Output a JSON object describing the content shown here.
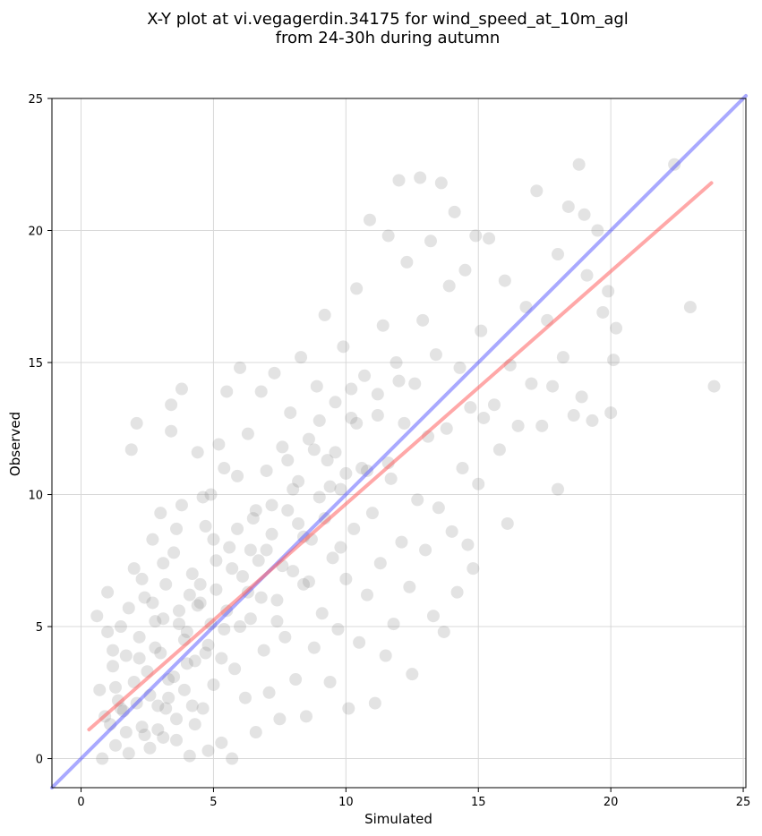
{
  "chart_data": {
    "type": "scatter",
    "title_line1": "X-Y plot at vi.vegagerdin.34175 for wind_speed_at_10m_agl",
    "title_line2": "from 24-30h during autumn",
    "xlabel": "Simulated",
    "ylabel": "Observed",
    "xlim": [
      -1.1,
      25.1
    ],
    "ylim": [
      -1.1,
      25
    ],
    "xticks": [
      0,
      5,
      10,
      15,
      20,
      25
    ],
    "yticks": [
      0,
      5,
      10,
      15,
      20,
      25
    ],
    "xtick_labels": [
      "0",
      "5",
      "10",
      "15",
      "20",
      "25"
    ],
    "ytick_labels": [
      "0",
      "5",
      "10",
      "15",
      "20",
      "25"
    ],
    "grid": true,
    "point_color": "#808080",
    "identity_line": {
      "x": [
        -1.1,
        25.1
      ],
      "y": [
        -1.1,
        25.1
      ],
      "color": "#4040ff"
    },
    "regression_line": {
      "x": [
        0.3,
        23.8
      ],
      "y": [
        1.1,
        21.8
      ],
      "color": "#ff6060"
    },
    "points": [
      [
        0.6,
        5.4
      ],
      [
        0.7,
        2.6
      ],
      [
        0.8,
        0.0
      ],
      [
        1.0,
        6.3
      ],
      [
        1.0,
        4.8
      ],
      [
        1.1,
        1.3
      ],
      [
        1.2,
        3.5
      ],
      [
        1.3,
        0.5
      ],
      [
        1.4,
        2.2
      ],
      [
        1.5,
        5.0
      ],
      [
        1.6,
        1.8
      ],
      [
        1.7,
        3.9
      ],
      [
        1.8,
        0.2
      ],
      [
        1.9,
        11.7
      ],
      [
        2.0,
        7.2
      ],
      [
        2.0,
        2.9
      ],
      [
        2.1,
        12.7
      ],
      [
        2.2,
        4.6
      ],
      [
        2.3,
        1.2
      ],
      [
        2.4,
        6.1
      ],
      [
        2.5,
        3.3
      ],
      [
        2.6,
        0.4
      ],
      [
        2.7,
        8.3
      ],
      [
        2.8,
        5.2
      ],
      [
        2.9,
        2.0
      ],
      [
        3.0,
        9.3
      ],
      [
        3.0,
        4.0
      ],
      [
        3.1,
        0.8
      ],
      [
        3.2,
        6.6
      ],
      [
        3.3,
        3.0
      ],
      [
        3.4,
        13.4
      ],
      [
        3.4,
        12.4
      ],
      [
        3.5,
        7.8
      ],
      [
        3.6,
        1.5
      ],
      [
        3.7,
        5.6
      ],
      [
        3.8,
        14.0
      ],
      [
        3.8,
        9.6
      ],
      [
        3.9,
        2.6
      ],
      [
        4.0,
        4.8
      ],
      [
        4.1,
        0.1
      ],
      [
        4.2,
        7.0
      ],
      [
        4.3,
        3.7
      ],
      [
        4.4,
        11.6
      ],
      [
        4.5,
        5.9
      ],
      [
        4.6,
        1.9
      ],
      [
        4.7,
        8.8
      ],
      [
        4.8,
        4.3
      ],
      [
        4.9,
        10.0
      ],
      [
        5.0,
        2.8
      ],
      [
        5.1,
        6.4
      ],
      [
        5.2,
        11.9
      ],
      [
        5.3,
        0.6
      ],
      [
        5.4,
        4.9
      ],
      [
        5.5,
        13.9
      ],
      [
        5.6,
        8.0
      ],
      [
        5.7,
        0.0
      ],
      [
        5.8,
        3.4
      ],
      [
        5.9,
        10.7
      ],
      [
        6.0,
        14.8
      ],
      [
        6.1,
        6.9
      ],
      [
        6.2,
        2.3
      ],
      [
        6.3,
        12.3
      ],
      [
        6.4,
        5.3
      ],
      [
        6.5,
        9.1
      ],
      [
        6.6,
        1.0
      ],
      [
        6.7,
        7.5
      ],
      [
        6.8,
        13.9
      ],
      [
        6.9,
        4.1
      ],
      [
        7.0,
        10.9
      ],
      [
        7.1,
        2.5
      ],
      [
        7.2,
        8.5
      ],
      [
        7.3,
        14.6
      ],
      [
        7.4,
        6.0
      ],
      [
        7.5,
        1.5
      ],
      [
        7.6,
        11.8
      ],
      [
        7.7,
        4.6
      ],
      [
        7.8,
        9.4
      ],
      [
        7.9,
        13.1
      ],
      [
        8.0,
        7.1
      ],
      [
        8.1,
        3.0
      ],
      [
        8.2,
        10.5
      ],
      [
        8.3,
        15.2
      ],
      [
        8.4,
        6.6
      ],
      [
        8.5,
        1.6
      ],
      [
        8.6,
        12.1
      ],
      [
        8.7,
        8.3
      ],
      [
        8.8,
        4.2
      ],
      [
        8.9,
        14.1
      ],
      [
        9.0,
        9.9
      ],
      [
        9.1,
        5.5
      ],
      [
        9.2,
        16.8
      ],
      [
        9.3,
        11.3
      ],
      [
        9.4,
        2.9
      ],
      [
        9.5,
        7.6
      ],
      [
        9.6,
        13.5
      ],
      [
        9.7,
        4.9
      ],
      [
        9.8,
        10.2
      ],
      [
        9.9,
        15.6
      ],
      [
        10.0,
        6.8
      ],
      [
        10.1,
        1.9
      ],
      [
        10.2,
        12.9
      ],
      [
        10.3,
        8.7
      ],
      [
        10.4,
        17.8
      ],
      [
        10.5,
        4.4
      ],
      [
        10.6,
        11.0
      ],
      [
        10.7,
        14.5
      ],
      [
        10.8,
        6.2
      ],
      [
        10.9,
        20.4
      ],
      [
        11.0,
        9.3
      ],
      [
        11.1,
        2.1
      ],
      [
        11.2,
        13.8
      ],
      [
        11.3,
        7.4
      ],
      [
        11.4,
        16.4
      ],
      [
        11.5,
        3.9
      ],
      [
        11.6,
        19.8
      ],
      [
        11.7,
        10.6
      ],
      [
        11.8,
        5.1
      ],
      [
        11.9,
        15.0
      ],
      [
        12.0,
        21.9
      ],
      [
        12.1,
        8.2
      ],
      [
        12.2,
        12.7
      ],
      [
        12.3,
        18.8
      ],
      [
        12.4,
        6.5
      ],
      [
        12.5,
        3.2
      ],
      [
        12.6,
        14.2
      ],
      [
        12.7,
        9.8
      ],
      [
        12.8,
        22.0
      ],
      [
        12.9,
        16.6
      ],
      [
        13.0,
        7.9
      ],
      [
        13.1,
        12.2
      ],
      [
        13.2,
        19.6
      ],
      [
        13.3,
        5.4
      ],
      [
        13.4,
        15.3
      ],
      [
        13.5,
        9.5
      ],
      [
        13.6,
        21.8
      ],
      [
        13.7,
        4.8
      ],
      [
        13.8,
        12.5
      ],
      [
        13.9,
        17.9
      ],
      [
        14.0,
        8.6
      ],
      [
        14.1,
        20.7
      ],
      [
        14.2,
        6.3
      ],
      [
        14.3,
        14.8
      ],
      [
        14.4,
        11.0
      ],
      [
        14.5,
        18.5
      ],
      [
        14.6,
        8.1
      ],
      [
        14.7,
        13.3
      ],
      [
        14.8,
        7.2
      ],
      [
        14.9,
        19.8
      ],
      [
        15.0,
        10.4
      ],
      [
        15.1,
        16.2
      ],
      [
        15.2,
        12.9
      ],
      [
        15.4,
        19.7
      ],
      [
        15.6,
        13.4
      ],
      [
        15.8,
        11.7
      ],
      [
        16.0,
        18.1
      ],
      [
        16.1,
        8.9
      ],
      [
        16.2,
        14.9
      ],
      [
        16.5,
        12.6
      ],
      [
        16.8,
        17.1
      ],
      [
        17.0,
        14.2
      ],
      [
        17.2,
        21.5
      ],
      [
        17.4,
        12.6
      ],
      [
        17.6,
        16.6
      ],
      [
        17.8,
        14.1
      ],
      [
        18.0,
        19.1
      ],
      [
        18.0,
        10.2
      ],
      [
        18.2,
        15.2
      ],
      [
        18.4,
        20.9
      ],
      [
        18.6,
        13.0
      ],
      [
        18.8,
        22.5
      ],
      [
        18.9,
        13.7
      ],
      [
        19.0,
        20.6
      ],
      [
        19.1,
        18.3
      ],
      [
        19.3,
        12.8
      ],
      [
        19.5,
        20.0
      ],
      [
        19.7,
        16.9
      ],
      [
        19.9,
        17.7
      ],
      [
        20.0,
        13.1
      ],
      [
        20.1,
        15.1
      ],
      [
        20.2,
        16.3
      ],
      [
        22.4,
        22.5
      ],
      [
        23.0,
        17.1
      ],
      [
        23.9,
        14.1
      ],
      [
        1.5,
        1.9
      ],
      [
        2.2,
        3.8
      ],
      [
        2.6,
        2.4
      ],
      [
        3.1,
        5.3
      ],
      [
        3.5,
        3.1
      ],
      [
        3.9,
        4.5
      ],
      [
        4.2,
        2.0
      ],
      [
        4.5,
        6.6
      ],
      [
        4.9,
        5.1
      ],
      [
        5.3,
        3.8
      ],
      [
        5.7,
        7.2
      ],
      [
        6.0,
        5.0
      ],
      [
        6.4,
        7.9
      ],
      [
        6.8,
        6.1
      ],
      [
        7.2,
        9.6
      ],
      [
        7.6,
        7.3
      ],
      [
        8.0,
        10.2
      ],
      [
        8.4,
        8.4
      ],
      [
        8.8,
        11.7
      ],
      [
        9.2,
        9.1
      ],
      [
        9.6,
        11.6
      ],
      [
        10.0,
        10.8
      ],
      [
        10.4,
        12.7
      ],
      [
        10.8,
        10.9
      ],
      [
        11.2,
        13.0
      ],
      [
        11.6,
        11.2
      ],
      [
        12.0,
        14.3
      ],
      [
        2.8,
        4.2
      ],
      [
        3.3,
        2.3
      ],
      [
        3.7,
        5.1
      ],
      [
        4.0,
        3.6
      ],
      [
        4.4,
        5.8
      ],
      [
        4.7,
        4.0
      ],
      [
        5.1,
        7.5
      ],
      [
        5.5,
        5.6
      ],
      [
        5.9,
        8.7
      ],
      [
        6.3,
        6.3
      ],
      [
        6.6,
        9.4
      ],
      [
        7.0,
        7.9
      ],
      [
        7.4,
        5.2
      ],
      [
        7.8,
        11.3
      ],
      [
        8.2,
        8.9
      ],
      [
        8.6,
        6.7
      ],
      [
        9.0,
        12.8
      ],
      [
        9.4,
        10.3
      ],
      [
        9.8,
        8.0
      ],
      [
        10.2,
        14.0
      ],
      [
        0.9,
        1.6
      ],
      [
        1.3,
        2.7
      ],
      [
        1.7,
        1.0
      ],
      [
        2.1,
        2.1
      ],
      [
        2.4,
        0.9
      ],
      [
        2.9,
        1.1
      ],
      [
        3.2,
        1.9
      ],
      [
        3.6,
        0.7
      ],
      [
        4.3,
        1.3
      ],
      [
        4.8,
        0.3
      ],
      [
        1.2,
        4.1
      ],
      [
        1.8,
        5.7
      ],
      [
        2.3,
        6.8
      ],
      [
        2.7,
        5.9
      ],
      [
        3.1,
        7.4
      ],
      [
        3.6,
        8.7
      ],
      [
        4.1,
        6.2
      ],
      [
        4.6,
        9.9
      ],
      [
        5.0,
        8.3
      ],
      [
        5.4,
        11.0
      ]
    ]
  }
}
